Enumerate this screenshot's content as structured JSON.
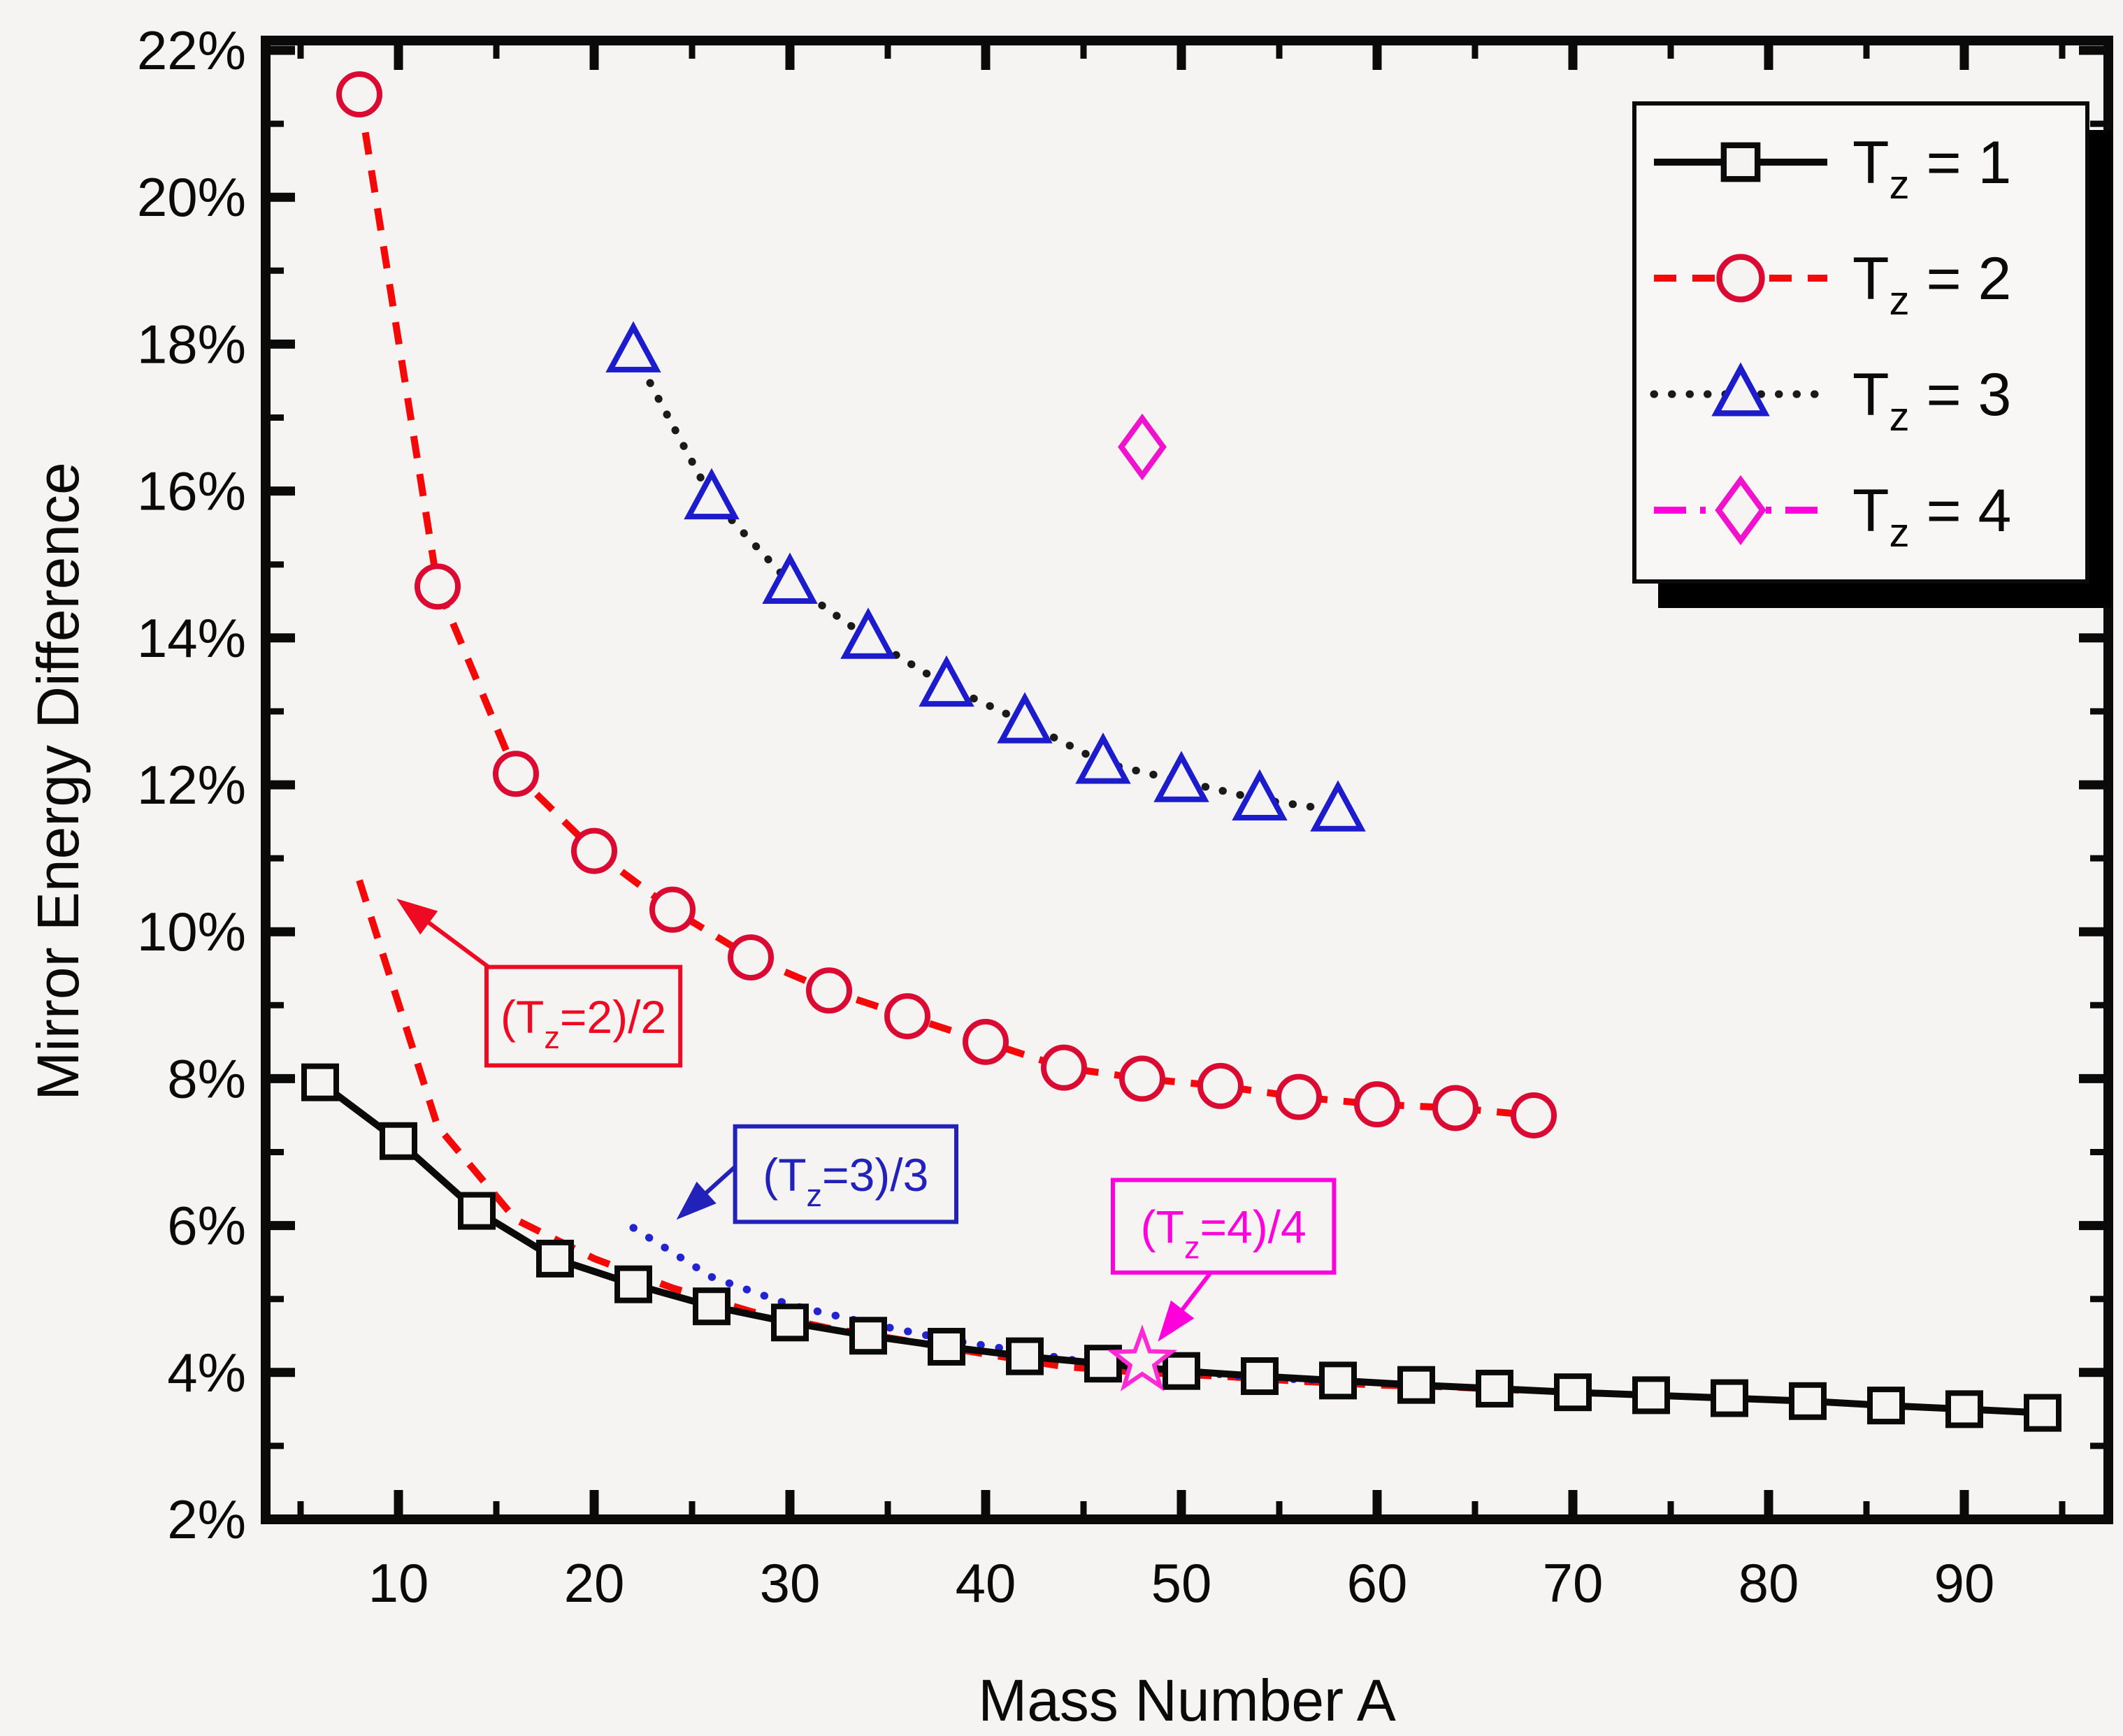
{
  "figure": {
    "background": "#f5f4f2",
    "frame_color": "#0a0a0a"
  },
  "axes": {
    "x": {
      "title": "Mass Number A",
      "min": 3.2,
      "max": 97.4,
      "major_ticks": [
        10,
        20,
        30,
        40,
        50,
        60,
        70,
        80,
        90
      ],
      "minor_ticks": [
        5,
        15,
        25,
        35,
        45,
        55,
        65,
        75,
        85,
        95
      ],
      "tick_labels": [
        "10",
        "20",
        "30",
        "40",
        "50",
        "60",
        "70",
        "80",
        "90"
      ]
    },
    "y": {
      "title": "Mirror Energy Difference",
      "min": 2,
      "max": 22.13,
      "major_ticks": [
        2,
        4,
        6,
        8,
        10,
        12,
        14,
        16,
        18,
        20,
        22
      ],
      "minor_ticks": [
        3,
        5,
        7,
        9,
        11,
        13,
        15,
        17,
        19,
        21
      ],
      "tick_labels": [
        "2%",
        "4%",
        "6%",
        "8%",
        "10%",
        "12%",
        "14%",
        "16%",
        "18%",
        "20%",
        "22%"
      ]
    }
  },
  "legend": {
    "entries": [
      {
        "label_parts": [
          [
            "T",
            0
          ],
          [
            "z",
            1
          ],
          [
            " = 1",
            0
          ]
        ],
        "series": "tz1"
      },
      {
        "label_parts": [
          [
            "T",
            0
          ],
          [
            "z",
            1
          ],
          [
            " = 2",
            0
          ]
        ],
        "series": "tz2"
      },
      {
        "label_parts": [
          [
            "T",
            0
          ],
          [
            "z",
            1
          ],
          [
            " = 3",
            0
          ]
        ],
        "series": "tz3"
      },
      {
        "label_parts": [
          [
            "T",
            0
          ],
          [
            "z",
            1
          ],
          [
            " = 4",
            0
          ]
        ],
        "series": "tz4"
      }
    ]
  },
  "chart_data": {
    "type": "line",
    "title": "",
    "xlabel": "Mass Number A",
    "ylabel": "Mirror Energy Difference",
    "xlim": [
      3.2,
      97.4
    ],
    "ylim": [
      2,
      22.13
    ],
    "grid": false,
    "legend_position": "top-right",
    "series": [
      {
        "id": "tz2_scaled",
        "name": "(Tz=2)/2",
        "in_legend": false,
        "line_color": "#f40808",
        "line_dash": "32 23",
        "line_width": 10,
        "marker": "none",
        "marker_color": "",
        "x": [
          8,
          12,
          16,
          20,
          24,
          28,
          32,
          36,
          40,
          44,
          48,
          52,
          56,
          60,
          64,
          68
        ],
        "y": [
          10.7,
          7.35,
          6.08,
          5.55,
          5.15,
          4.83,
          4.6,
          4.43,
          4.25,
          4.08,
          4.0,
          3.95,
          3.88,
          3.83,
          3.8,
          3.75
        ]
      },
      {
        "id": "tz3_scaled",
        "name": "(Tz=3)/3",
        "in_legend": false,
        "line_color": "#2424cf",
        "line_dash": "0.5 26",
        "line_width": 11,
        "line_cap": "round",
        "marker": "none",
        "marker_color": "",
        "x": [
          22,
          26,
          30,
          34,
          38,
          42,
          46,
          50,
          54,
          58
        ],
        "y": [
          5.97,
          5.3,
          4.92,
          4.67,
          4.45,
          4.28,
          4.1,
          4.02,
          3.93,
          3.88
        ]
      },
      {
        "id": "tz1",
        "name": "Tz = 1",
        "in_legend": true,
        "line_color": "#0a0a0a",
        "line_dash": "",
        "line_width": 10,
        "marker": "square",
        "marker_color": "#0a0a0a",
        "x": [
          6,
          10,
          14,
          18,
          22,
          26,
          30,
          34,
          38,
          42,
          46,
          50,
          54,
          58,
          62,
          66,
          70,
          74,
          78,
          82,
          86,
          90,
          94
        ],
        "y": [
          7.95,
          7.15,
          6.2,
          5.55,
          5.2,
          4.9,
          4.68,
          4.5,
          4.35,
          4.22,
          4.12,
          4.02,
          3.95,
          3.89,
          3.83,
          3.78,
          3.73,
          3.69,
          3.65,
          3.61,
          3.55,
          3.5,
          3.45
        ]
      },
      {
        "id": "tz2",
        "name": "Tz = 2",
        "in_legend": true,
        "line_color": "#f40808",
        "line_dash": "32 23",
        "line_width": 10,
        "marker": "circle",
        "marker_color": "#da0a32",
        "x": [
          8,
          12,
          16,
          20,
          24,
          28,
          32,
          36,
          40,
          44,
          48,
          52,
          56,
          60,
          64,
          68
        ],
        "y": [
          21.4,
          14.7,
          12.15,
          11.1,
          10.3,
          9.65,
          9.2,
          8.85,
          8.5,
          8.15,
          8.0,
          7.9,
          7.75,
          7.65,
          7.6,
          7.5
        ]
      },
      {
        "id": "tz3",
        "name": "Tz = 3",
        "in_legend": true,
        "line_color": "#1a1a1a",
        "line_dash": "0.5 25",
        "line_width": 11,
        "line_cap": "round",
        "marker": "triangle",
        "marker_color": "#1c1ccd",
        "x": [
          22,
          26,
          30,
          34,
          38,
          42,
          46,
          50,
          54,
          58
        ],
        "y": [
          17.9,
          15.9,
          14.75,
          14.0,
          13.35,
          12.85,
          12.3,
          12.05,
          11.8,
          11.65
        ]
      },
      {
        "id": "tz4",
        "name": "Tz = 4",
        "in_legend": true,
        "line_color": "#ff00dd",
        "line_dash": "46 20 8 20",
        "line_width": 10,
        "marker": "diamond",
        "marker_color": "#f012cc",
        "x": [
          48
        ],
        "y": [
          16.6
        ]
      },
      {
        "id": "tz4_scaled",
        "name": "(Tz=4)/4",
        "in_legend": false,
        "line_color": "#ff00dd",
        "line_dash": "",
        "line_width": 0,
        "marker": "star",
        "marker_color": "#ff2ad4",
        "x": [
          48
        ],
        "y": [
          4.15
        ]
      }
    ],
    "annotations": [
      {
        "id": "ann_tz2_half",
        "text_parts": [
          [
            "(T",
            0
          ],
          [
            "z",
            1
          ],
          [
            "=2)/2",
            0
          ]
        ],
        "color": "#ee0a22",
        "box": {
          "a1": 14.5,
          "v1": 9.52,
          "a2": 24.4,
          "v2": 8.18
        },
        "arrow_from": {
          "a": 14.7,
          "v": 9.5
        },
        "arrow_tip": {
          "a": 9.9,
          "v": 10.45
        }
      },
      {
        "id": "ann_tz3_third",
        "text_parts": [
          [
            "(T",
            0
          ],
          [
            "z",
            1
          ],
          [
            "=3)/3",
            0
          ]
        ],
        "color": "#2222bb",
        "box": {
          "a1": 27.2,
          "v1": 7.35,
          "a2": 38.5,
          "v2": 6.05
        },
        "arrow_from": {
          "a": 27.2,
          "v": 6.8
        },
        "arrow_tip": {
          "a": 24.2,
          "v": 6.08
        }
      },
      {
        "id": "ann_tz4_quarter",
        "text_parts": [
          [
            "(T",
            0
          ],
          [
            "z",
            1
          ],
          [
            "=4)/4",
            0
          ]
        ],
        "color": "#ff00dd",
        "box": {
          "a1": 46.5,
          "v1": 6.62,
          "a2": 57.8,
          "v2": 5.36
        },
        "arrow_from": {
          "a": 51.5,
          "v": 5.36
        },
        "arrow_tip": {
          "a": 48.8,
          "v": 4.42
        }
      }
    ]
  }
}
